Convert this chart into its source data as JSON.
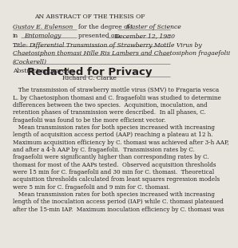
{
  "bg_color": "#e8e4de",
  "header": "AN ABSTRACT OF THE THESIS OF",
  "line1_label1": "Gustav E. Eulenson",
  "line1_mid": "for the degree of",
  "line1_label2": "Master of Science",
  "line2_prefix": "in",
  "line2_label1": "Entomology",
  "line2_mid": "presented on",
  "line2_label2": "December 12, 1980",
  "title_prefix": "Title:",
  "title_line1": "Differential Transmission of Strawberry Mottle Virus by",
  "title_line2": "Chaetosiphon thomasi Hille Ris Lambers and Chaetosiphon fragaefolii",
  "title_line3": "(Cockerell)",
  "abstract_label": "Abstract approved:",
  "redacted_text": "Redacted for Privacy",
  "approver": "Richard C. Clarke",
  "body_lines": [
    "   The transmission of strawberry mottle virus (SMV) to Fragaria vesca",
    "L. by Chaetosiphon thomasi and C. fragaefolii was studied to determine",
    "differences between the two species.  Acquisition, inoculation, and",
    "retention phases of transmission were described.  In all phases, C.",
    "fragaefolii was found to be the more efficient vector.",
    "   Mean transmission rates for both species increased with increasing",
    "length of acquisition access period (AAP) reaching a plateau at 12 h.",
    "Maximum acquisition efficiency by C. thomasi was achieved after 3-h AAP,",
    "and after a 4-h AAP by C. fragaefolii.  Transmission rates by C.",
    "fragaefolii were significantly higher than corresponding rates by C.",
    "thomasi for most of the AAPs tested.  Observed acquisition thresholds",
    "were 15 min for C. fragaefolii and 30 min for C. thomasi.  Theoretical",
    "acquisition thresholds calculated from least squares regression models",
    "were 5 min for C. fragaefolii and 9 min for C. thomasi.",
    "   Mean transmission rates for both species increased with increasing",
    "length of the inoculation access period (IAP) while C. thomasi plateaued",
    "after the 15-min IAP.  Maximum inoculation efficiency by C. thomasi was"
  ],
  "line_color": "#555555",
  "text_color": "#222222",
  "small": 5.5,
  "tiny": 5.2,
  "large": 9.5
}
